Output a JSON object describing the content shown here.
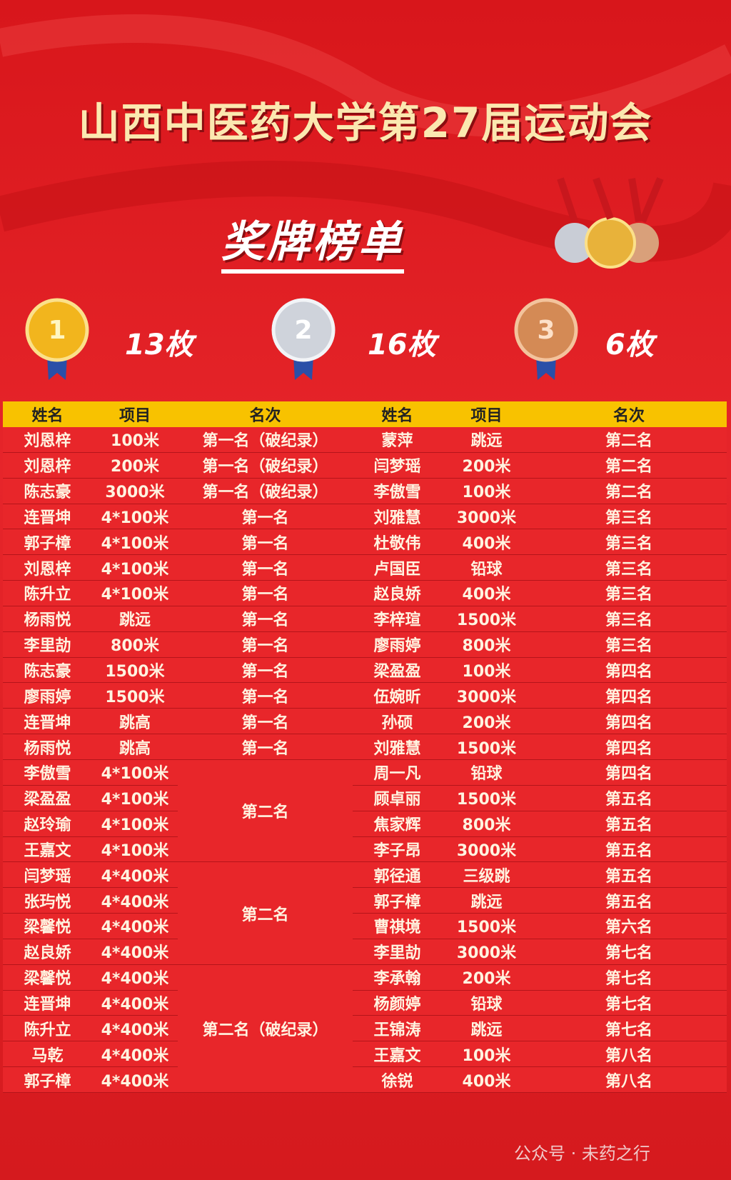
{
  "header": {
    "title": "山西中医药大学第27届运动会",
    "subtitle": "奖牌榜单",
    "medals": [
      {
        "count": "13枚"
      },
      {
        "count": "16枚"
      },
      {
        "count": "6枚"
      }
    ]
  },
  "table": {
    "headers": [
      "姓名",
      "项目",
      "名次",
      "姓名",
      "项目",
      "名次"
    ],
    "left_groups": [
      {
        "rank": "第一名（破纪录）",
        "rows": [
          [
            "刘恩梓",
            "100米"
          ]
        ]
      },
      {
        "rank": "第一名（破纪录）",
        "rows": [
          [
            "刘恩梓",
            "200米"
          ]
        ]
      },
      {
        "rank": "第一名（破纪录）",
        "rows": [
          [
            "陈志豪",
            "3000米"
          ]
        ]
      },
      {
        "rank": "第一名",
        "rows": [
          [
            "连晋坤",
            "4*100米"
          ]
        ]
      },
      {
        "rank": "第一名",
        "rows": [
          [
            "郭子樟",
            "4*100米"
          ]
        ]
      },
      {
        "rank": "第一名",
        "rows": [
          [
            "刘恩梓",
            "4*100米"
          ]
        ]
      },
      {
        "rank": "第一名",
        "rows": [
          [
            "陈升立",
            "4*100米"
          ]
        ]
      },
      {
        "rank": "第一名",
        "rows": [
          [
            "杨雨悦",
            "跳远"
          ]
        ]
      },
      {
        "rank": "第一名",
        "rows": [
          [
            "李里劼",
            "800米"
          ]
        ]
      },
      {
        "rank": "第一名",
        "rows": [
          [
            "陈志豪",
            "1500米"
          ]
        ]
      },
      {
        "rank": "第一名",
        "rows": [
          [
            "廖雨婷",
            "1500米"
          ]
        ]
      },
      {
        "rank": "第一名",
        "rows": [
          [
            "连晋坤",
            "跳高"
          ]
        ]
      },
      {
        "rank": "第一名",
        "rows": [
          [
            "杨雨悦",
            "跳高"
          ]
        ]
      },
      {
        "rank": "第二名",
        "rows": [
          [
            "李傲雪",
            "4*100米"
          ],
          [
            "梁盈盈",
            "4*100米"
          ],
          [
            "赵玲瑜",
            "4*100米"
          ],
          [
            "王嘉文",
            "4*100米"
          ]
        ]
      },
      {
        "rank": "第二名",
        "rows": [
          [
            "闫梦瑶",
            "4*400米"
          ],
          [
            "张玙悦",
            "4*400米"
          ],
          [
            "梁馨悦",
            "4*400米"
          ],
          [
            "赵良娇",
            "4*400米"
          ]
        ]
      },
      {
        "rank": "第二名（破纪录）",
        "rows": [
          [
            "梁馨悦",
            "4*400米"
          ],
          [
            "连晋坤",
            "4*400米"
          ],
          [
            "陈升立",
            "4*400米"
          ],
          [
            "马乾",
            "4*400米"
          ],
          [
            "郭子樟",
            "4*400米"
          ]
        ]
      }
    ],
    "right_rows": [
      [
        "蒙萍",
        "跳远",
        "第二名"
      ],
      [
        "闫梦瑶",
        "200米",
        "第二名"
      ],
      [
        "李傲雪",
        "100米",
        "第二名"
      ],
      [
        "刘雅慧",
        "3000米",
        "第三名"
      ],
      [
        "杜敬伟",
        "400米",
        "第三名"
      ],
      [
        "卢国臣",
        "铅球",
        "第三名"
      ],
      [
        "赵良娇",
        "400米",
        "第三名"
      ],
      [
        "李梓瑄",
        "1500米",
        "第三名"
      ],
      [
        "廖雨婷",
        "800米",
        "第三名"
      ],
      [
        "梁盈盈",
        "100米",
        "第四名"
      ],
      [
        "伍婉昕",
        "3000米",
        "第四名"
      ],
      [
        "孙硕",
        "200米",
        "第四名"
      ],
      [
        "刘雅慧",
        "1500米",
        "第四名"
      ],
      [
        "周一凡",
        "铅球",
        "第四名"
      ],
      [
        "顾卓丽",
        "1500米",
        "第五名"
      ],
      [
        "焦家辉",
        "800米",
        "第五名"
      ],
      [
        "李子昂",
        "3000米",
        "第五名"
      ],
      [
        "郭径通",
        "三级跳",
        "第五名"
      ],
      [
        "郭子樟",
        "跳远",
        "第五名"
      ],
      [
        "曹祺境",
        "1500米",
        "第六名"
      ],
      [
        "李里劼",
        "3000米",
        "第七名"
      ],
      [
        "李承翰",
        "200米",
        "第七名"
      ],
      [
        "杨颜婷",
        "铅球",
        "第七名"
      ],
      [
        "王锦涛",
        "跳远",
        "第七名"
      ],
      [
        "王嘉文",
        "100米",
        "第八名"
      ],
      [
        "徐锐",
        "400米",
        "第八名"
      ]
    ]
  },
  "watermark": "公众号 · 未药之行"
}
